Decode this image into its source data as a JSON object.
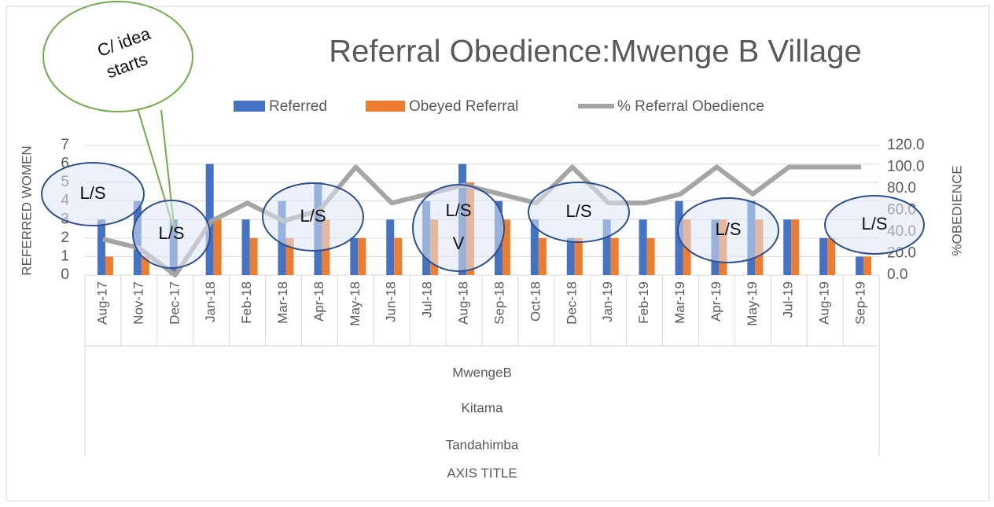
{
  "chart_data": {
    "type": "bar",
    "title": "Referral Obedience:Mwenge B Village",
    "categories": [
      "Aug-17",
      "Nov-17",
      "Dec-17",
      "Jan-18",
      "Feb-18",
      "Mar-18",
      "Apr-18",
      "May-18",
      "Jun-18",
      "Jul-18",
      "Aug-18",
      "Sep-18",
      "Oct-18",
      "Dec-18",
      "Jan-19",
      "Feb-19",
      "Mar-19",
      "Apr-19",
      "May-19",
      "Jul-19",
      "Aug-19",
      "Sep-19"
    ],
    "category_groups": [
      "MwengeB",
      "Kitama",
      "Tandahimba"
    ],
    "x_label": "AXIS TITLE",
    "y_label": "REFERRED WOMEN",
    "y2_label": "%OBEDIENCE",
    "series": [
      {
        "name": "Referred",
        "color": "#4472c4",
        "type": "bar",
        "values": [
          3,
          4,
          3,
          6,
          3,
          4,
          5,
          2,
          3,
          4,
          6,
          4,
          3,
          2,
          3,
          3,
          4,
          3,
          4,
          3,
          2,
          1
        ]
      },
      {
        "name": "Obeyed Referral",
        "color": "#ed7d31",
        "type": "bar",
        "values": [
          1,
          1,
          0,
          3,
          2,
          2,
          3,
          2,
          2,
          3,
          5,
          3,
          2,
          2,
          2,
          2,
          3,
          3,
          3,
          3,
          2,
          1
        ]
      },
      {
        "name": "% Referral Obedience",
        "color": "#a5a5a5",
        "type": "line",
        "axis": "y2",
        "values": [
          33.3,
          25,
          0,
          50,
          66.7,
          50,
          60,
          100,
          66.7,
          75,
          83.3,
          75,
          66.7,
          100,
          66.7,
          66.7,
          75,
          100,
          75,
          100,
          100,
          100
        ]
      }
    ],
    "ylim": [
      0,
      7
    ],
    "yticks": [
      0,
      1,
      2,
      3,
      4,
      5,
      6,
      7
    ],
    "y2lim": [
      0,
      120
    ],
    "y2ticks": [
      {
        "value": 0,
        "label": "0.0"
      },
      {
        "value": 20,
        "label": "20.0"
      },
      {
        "value": 40,
        "label": "40.0"
      },
      {
        "value": 60,
        "label": "60.0"
      },
      {
        "value": 80,
        "label": "80.0"
      },
      {
        "value": 100,
        "label": "100.0"
      },
      {
        "value": 120,
        "label": "120.0"
      }
    ],
    "grid": true,
    "legend": "top",
    "callout": [
      "C/ idea",
      "starts"
    ],
    "annotations": [
      [
        "L/S"
      ],
      [
        "L/S"
      ],
      [
        "L/S"
      ],
      [
        "L/S",
        "V"
      ],
      [
        "L/S"
      ],
      [
        "L/S"
      ],
      [
        "L/S"
      ]
    ]
  }
}
